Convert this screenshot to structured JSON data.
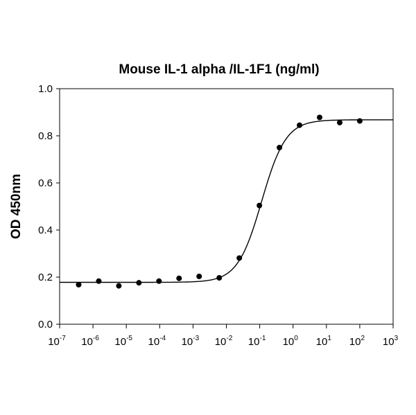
{
  "chart_data": {
    "type": "scatter",
    "title": "Mouse IL-1 alpha /IL-1F1 (ng/ml)",
    "xlabel": "",
    "ylabel": "OD 450nm",
    "xscale": "log",
    "xlim": [
      1e-07,
      1000
    ],
    "ylim": [
      0,
      1.0
    ],
    "x_ticks": [
      "10-7",
      "10-6",
      "10-5",
      "10-4",
      "10-3",
      "10-2",
      "10-1",
      "100",
      "101",
      "102",
      "103"
    ],
    "x_tick_base": "10",
    "x_tick_exponents": [
      "-7",
      "-6",
      "-5",
      "-4",
      "-3",
      "-2",
      "-1",
      "0",
      "1",
      "2",
      "3"
    ],
    "y_ticks": [
      "0.0",
      "0.2",
      "0.4",
      "0.6",
      "0.8",
      "1.0"
    ],
    "grid": false,
    "fitted_curve": "4-parameter logistic",
    "series": [
      {
        "marker_color": "#000000",
        "x": [
          100,
          25,
          6.25,
          1.5625,
          0.390625,
          0.09765625,
          0.0244140625,
          0.006103515625,
          0.00152587890625,
          0.0003814697265625,
          9.5367431640625e-05,
          2.38418579e-05,
          5.9604645e-06,
          1.4901161e-06,
          3.7252903e-07
        ],
        "y": [
          0.863,
          0.856,
          0.878,
          0.845,
          0.75,
          0.504,
          0.281,
          0.197,
          0.203,
          0.195,
          0.183,
          0.176,
          0.163,
          0.183,
          0.168
        ]
      }
    ]
  }
}
